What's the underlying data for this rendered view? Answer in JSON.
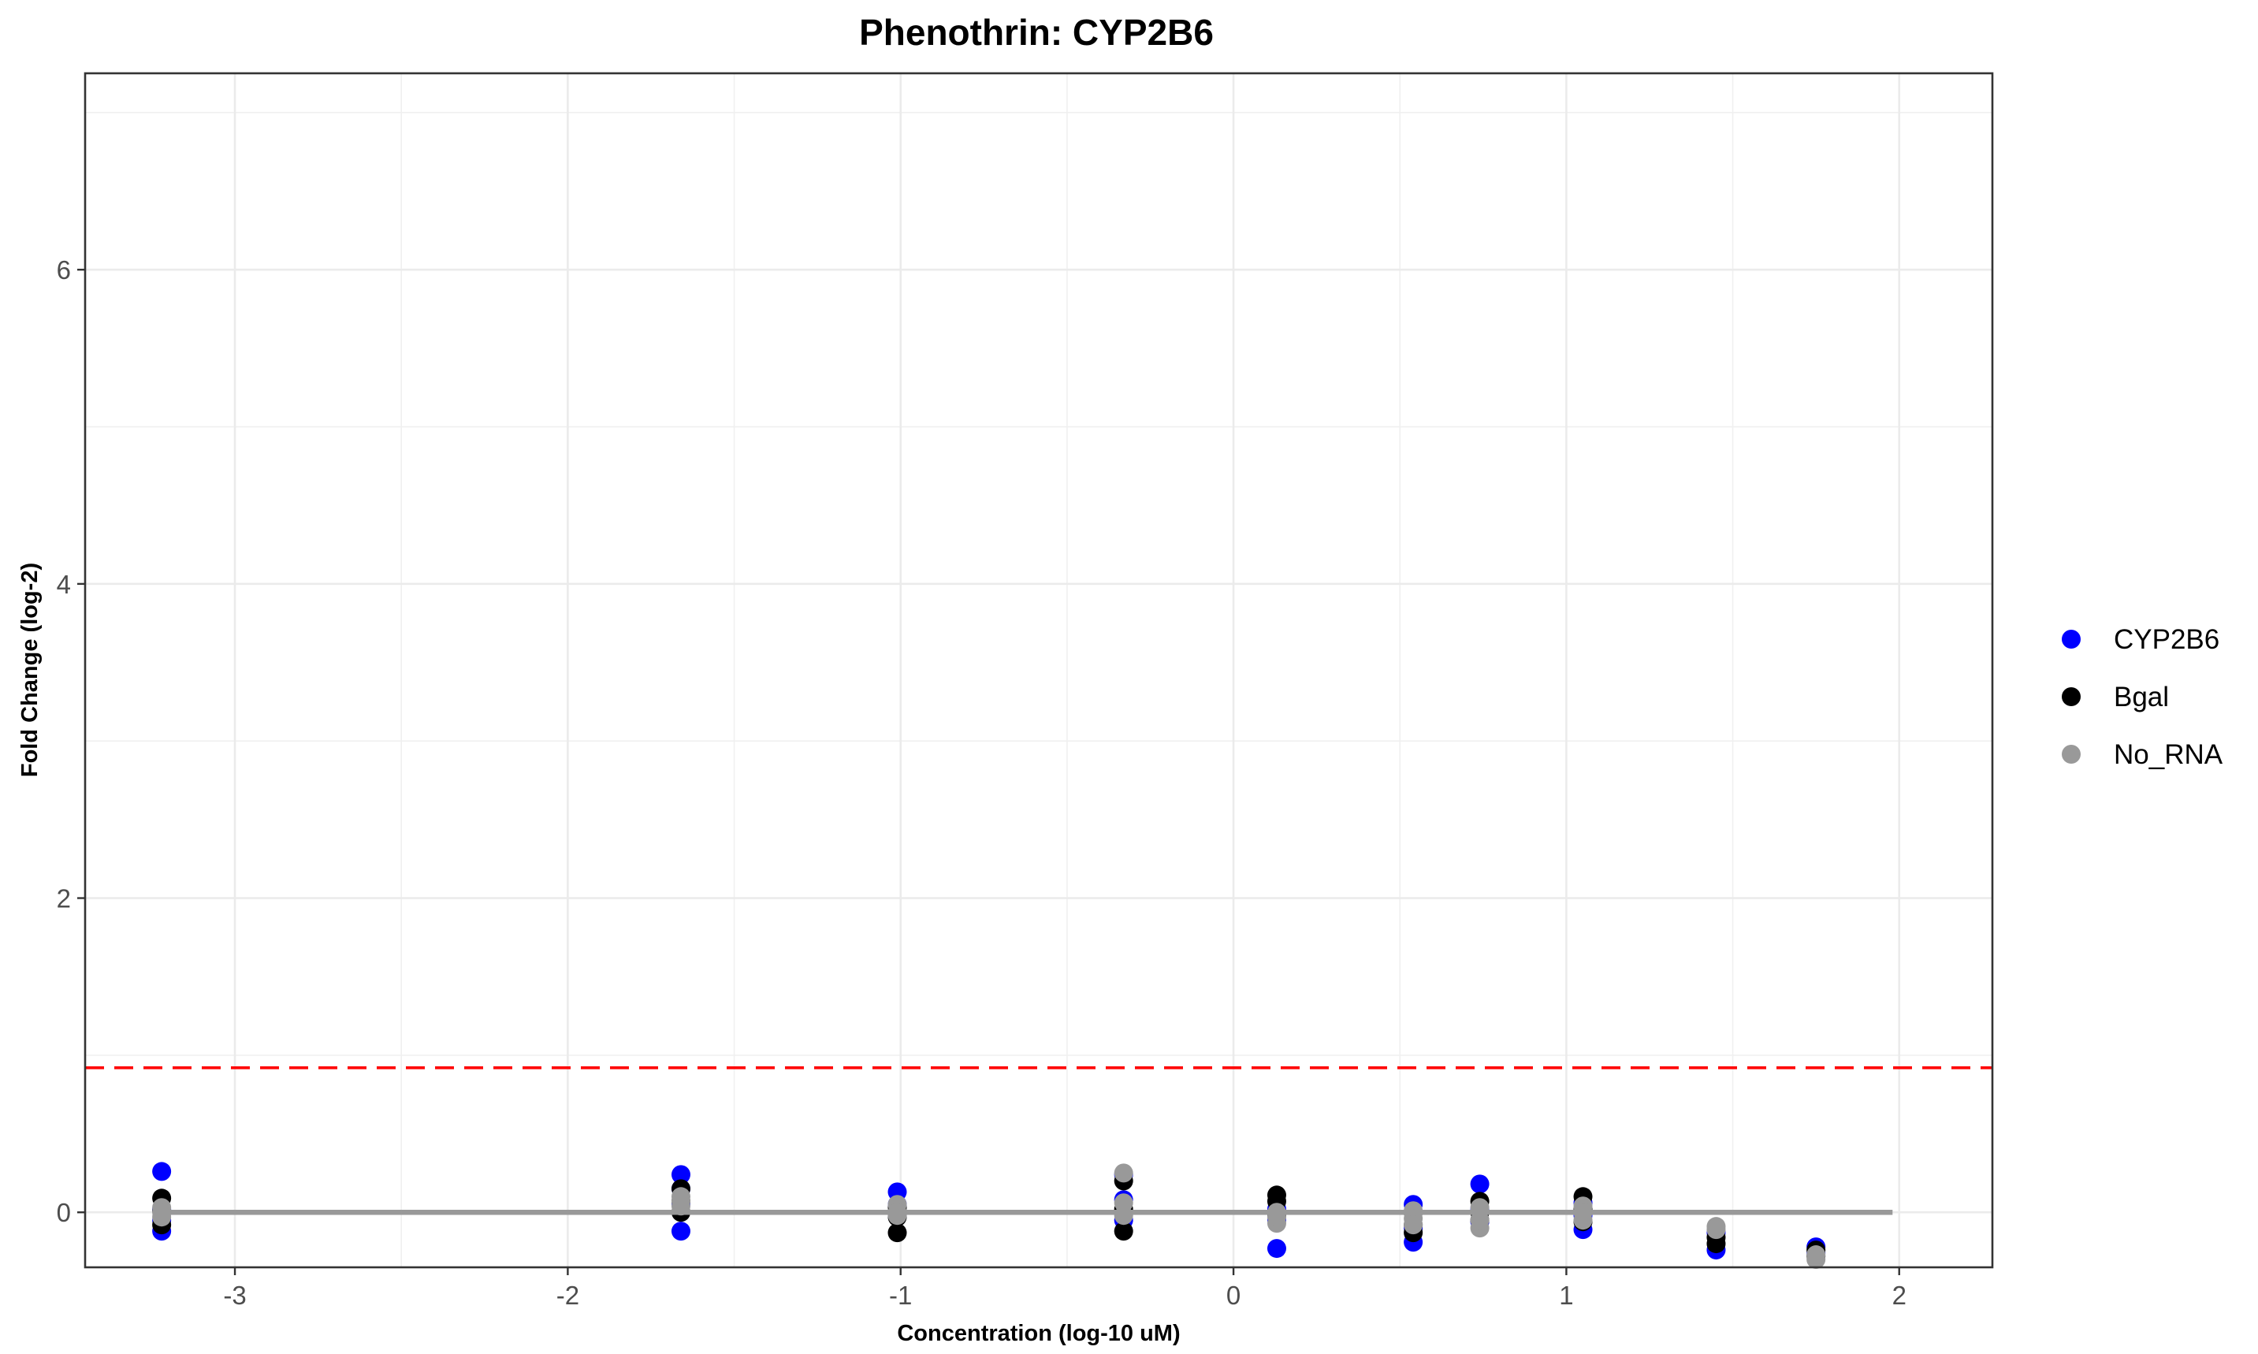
{
  "chart_data": {
    "type": "scatter",
    "title": "Phenothrin: CYP2B6",
    "xlabel": "Concentration (log-10 uM)",
    "ylabel": "Fold Change (log-2)",
    "xlim": [
      -3.45,
      2.28
    ],
    "ylim": [
      -0.35,
      7.25
    ],
    "x_ticks": [
      -3,
      -2,
      -1,
      0,
      1,
      2
    ],
    "y_ticks": [
      0,
      2,
      4,
      6
    ],
    "grid": true,
    "legend_position": "right",
    "threshold": {
      "y": 0.92,
      "color": "#ff0000",
      "style": "dashed"
    },
    "fit_line": {
      "x": [
        -3.22,
        1.98
      ],
      "y": [
        0,
        0
      ],
      "color": "#999999"
    },
    "series": [
      {
        "name": "CYP2B6",
        "color": "#0000ff",
        "points": [
          [
            -3.22,
            0.26
          ],
          [
            -3.22,
            -0.12
          ],
          [
            -3.22,
            0.02
          ],
          [
            -3.22,
            -0.05
          ],
          [
            -1.66,
            0.24
          ],
          [
            -1.66,
            -0.12
          ],
          [
            -1.66,
            0.15
          ],
          [
            -1.66,
            0.05
          ],
          [
            -1.01,
            0.13
          ],
          [
            -1.01,
            -0.02
          ],
          [
            -1.01,
            0.05
          ],
          [
            -0.33,
            0.24
          ],
          [
            -0.33,
            -0.05
          ],
          [
            -0.33,
            0.08
          ],
          [
            0.13,
            -0.23
          ],
          [
            0.13,
            0.02
          ],
          [
            0.13,
            -0.05
          ],
          [
            0.54,
            0.05
          ],
          [
            0.54,
            -0.19
          ],
          [
            0.54,
            -0.1
          ],
          [
            0.74,
            0.18
          ],
          [
            0.74,
            0.02
          ],
          [
            0.74,
            -0.06
          ],
          [
            1.05,
            -0.11
          ],
          [
            1.05,
            -0.02
          ],
          [
            1.05,
            0.06
          ],
          [
            1.45,
            -0.24
          ],
          [
            1.45,
            -0.13
          ],
          [
            1.75,
            -0.22
          ],
          [
            1.75,
            -0.26
          ]
        ]
      },
      {
        "name": "Bgal",
        "color": "#000000",
        "points": [
          [
            -3.22,
            0.09
          ],
          [
            -3.22,
            -0.08
          ],
          [
            -3.22,
            0.01
          ],
          [
            -1.66,
            0.15
          ],
          [
            -1.66,
            0.0
          ],
          [
            -1.66,
            0.07
          ],
          [
            -1.01,
            -0.13
          ],
          [
            -1.01,
            -0.03
          ],
          [
            -1.01,
            0.03
          ],
          [
            -0.33,
            0.2
          ],
          [
            -0.33,
            -0.12
          ],
          [
            -0.33,
            0.02
          ],
          [
            0.13,
            0.11
          ],
          [
            0.13,
            0.07
          ],
          [
            0.13,
            -0.02
          ],
          [
            0.54,
            -0.13
          ],
          [
            0.54,
            -0.08
          ],
          [
            0.54,
            0.0
          ],
          [
            0.74,
            0.07
          ],
          [
            0.74,
            -0.05
          ],
          [
            0.74,
            0.0
          ],
          [
            1.05,
            0.1
          ],
          [
            1.05,
            -0.06
          ],
          [
            1.05,
            0.02
          ],
          [
            1.45,
            -0.2
          ],
          [
            1.45,
            -0.16
          ],
          [
            1.75,
            -0.28
          ],
          [
            1.75,
            -0.24
          ]
        ]
      },
      {
        "name": "No_RNA",
        "color": "#999999",
        "points": [
          [
            -3.22,
            0.03
          ],
          [
            -3.22,
            -0.03
          ],
          [
            -3.22,
            0.0
          ],
          [
            -1.66,
            0.1
          ],
          [
            -1.66,
            0.04
          ],
          [
            -1.66,
            0.07
          ],
          [
            -1.01,
            0.05
          ],
          [
            -1.01,
            -0.02
          ],
          [
            -1.01,
            0.0
          ],
          [
            -0.33,
            0.25
          ],
          [
            -0.33,
            0.06
          ],
          [
            -0.33,
            -0.02
          ],
          [
            0.13,
            0.0
          ],
          [
            0.13,
            -0.07
          ],
          [
            0.13,
            -0.03
          ],
          [
            0.54,
            0.01
          ],
          [
            0.54,
            -0.04
          ],
          [
            0.54,
            -0.08
          ],
          [
            0.74,
            -0.1
          ],
          [
            0.74,
            0.03
          ],
          [
            0.74,
            -0.05
          ],
          [
            1.05,
            0.04
          ],
          [
            1.05,
            -0.05
          ],
          [
            1.05,
            0.0
          ],
          [
            1.45,
            -0.11
          ],
          [
            1.45,
            -0.09
          ],
          [
            1.75,
            -0.3
          ],
          [
            1.75,
            -0.27
          ]
        ]
      }
    ]
  }
}
